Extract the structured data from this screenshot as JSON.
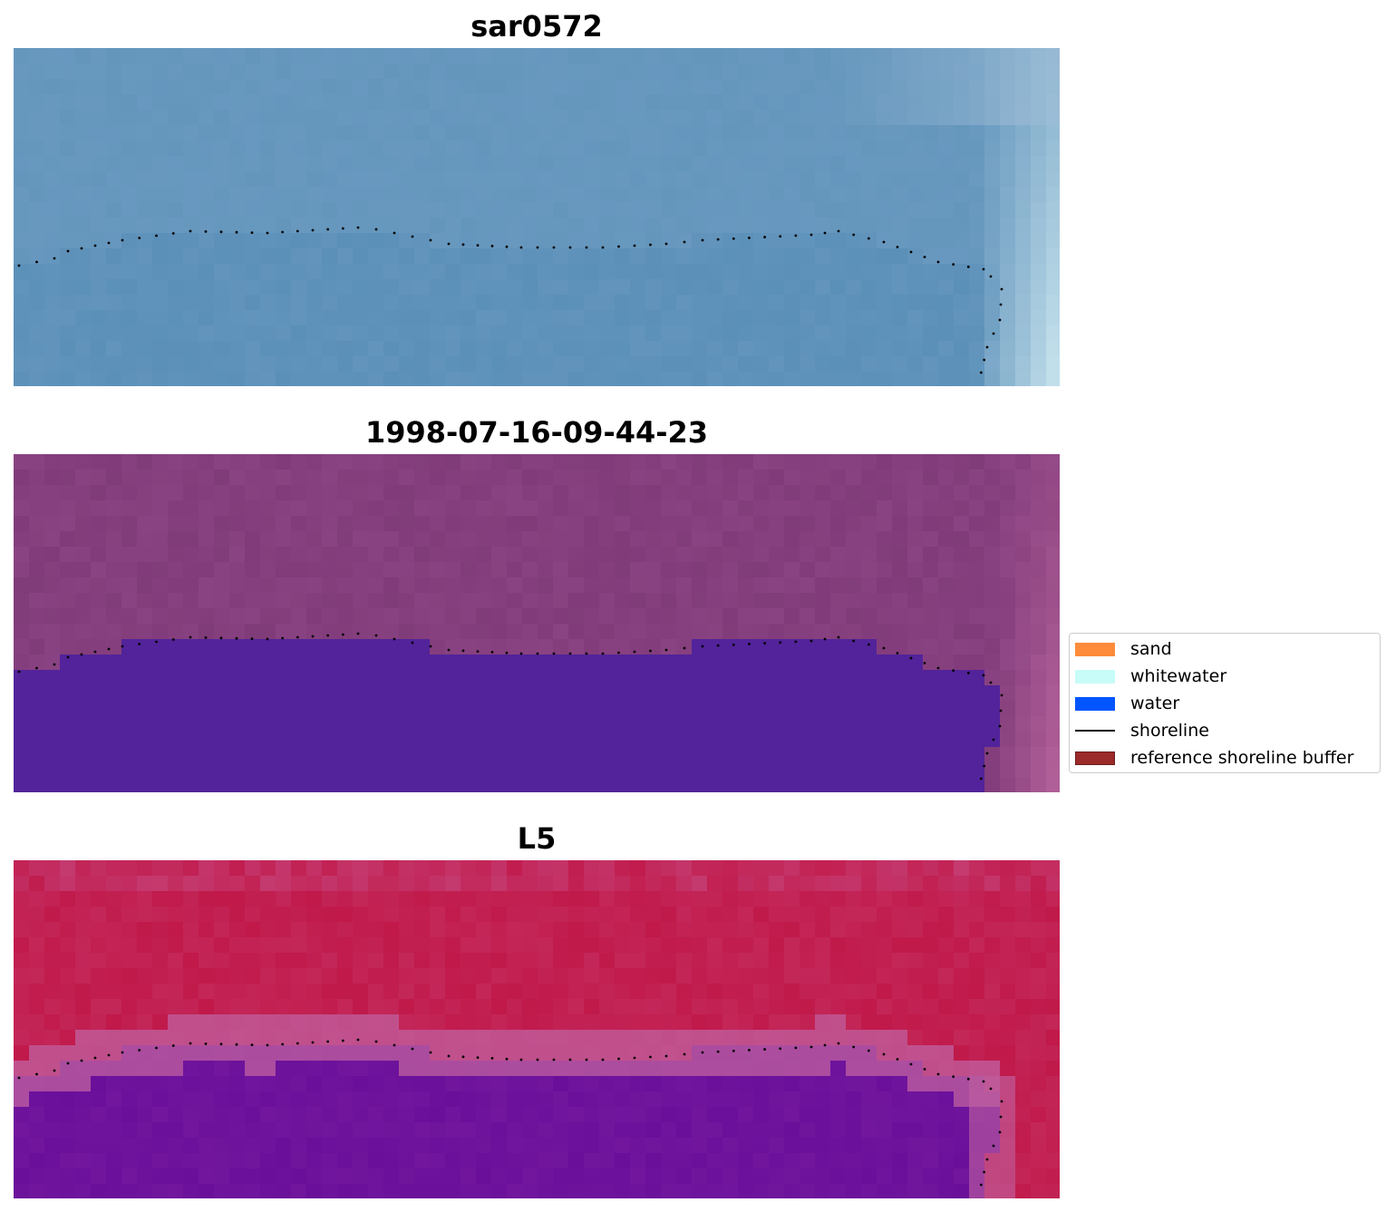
{
  "panels": [
    {
      "title": "sar0572"
    },
    {
      "title": "1998-07-16-09-44-23"
    },
    {
      "title": "L5"
    }
  ],
  "legend": {
    "items": [
      {
        "label": "sand",
        "kind": "patch",
        "color": "#ff8c3a"
      },
      {
        "label": "whitewater",
        "kind": "patch",
        "color": "#c8fcf8"
      },
      {
        "label": "water",
        "kind": "patch",
        "color": "#0055ff"
      },
      {
        "label": "shoreline",
        "kind": "line",
        "color": "#000000"
      },
      {
        "label": "reference shoreline buffer",
        "kind": "patch",
        "color": "#9b2a2a"
      }
    ]
  },
  "colors": {
    "sar_base": "#6496bc",
    "sar_water": "#5b90b8",
    "sar_highlight": "#d8f0f6",
    "class_land": "#8a4382",
    "class_water": "#52239a",
    "class_edge": "#c06aa0",
    "l5_land": "#c0194a",
    "l5_buffer": "#c060a0",
    "l5_water": "#6a0f9a",
    "shoreline": "#000000"
  }
}
